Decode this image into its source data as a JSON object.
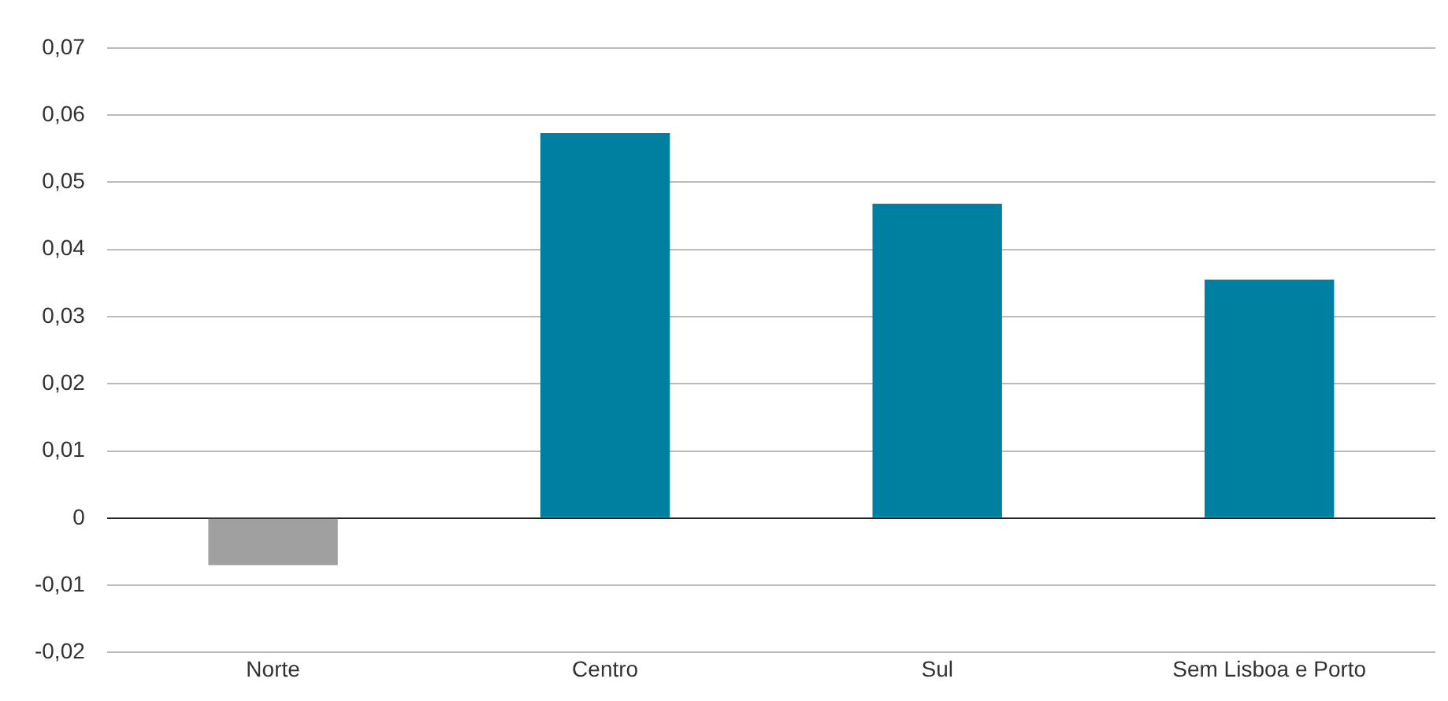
{
  "chart_data": {
    "type": "bar",
    "categories": [
      "Norte",
      "Centro",
      "Sul",
      "Sem Lisboa e Porto"
    ],
    "values": [
      -0.007,
      0.0573,
      0.0468,
      0.0355
    ],
    "colors": [
      "#a0a0a0",
      "#0080a0",
      "#0080a0",
      "#0080a0"
    ],
    "ylim": [
      -0.02,
      0.07
    ],
    "yticks": [
      {
        "value": -0.02,
        "label": "-0,02"
      },
      {
        "value": -0.01,
        "label": "-0,01"
      },
      {
        "value": 0,
        "label": "0"
      },
      {
        "value": 0.01,
        "label": "0,01"
      },
      {
        "value": 0.02,
        "label": "0,02"
      },
      {
        "value": 0.03,
        "label": "0,03"
      },
      {
        "value": 0.04,
        "label": "0,04"
      },
      {
        "value": 0.05,
        "label": "0,05"
      },
      {
        "value": 0.06,
        "label": "0,06"
      },
      {
        "value": 0.07,
        "label": "0,07"
      }
    ],
    "grid": "y",
    "legend": false
  }
}
